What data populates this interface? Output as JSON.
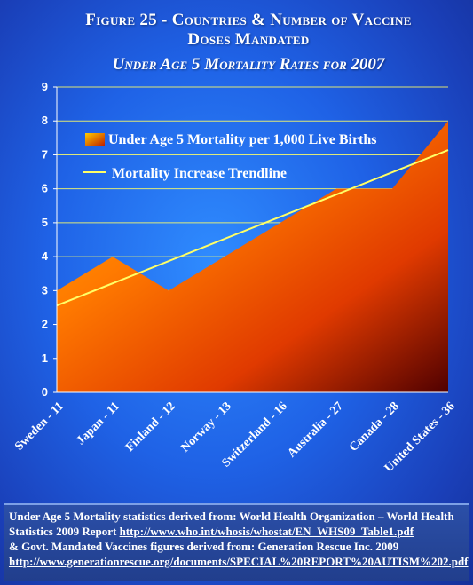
{
  "title": "Figure 25 - Countries & Number of Vaccine Doses Mandated",
  "subtitle": "Under Age 5 Mortality Rates for 2007",
  "chart_data": {
    "type": "area",
    "categories": [
      "Sweden - 11",
      "Japan - 11",
      "Finland - 12",
      "Norway - 13",
      "Switzerland - 16",
      "Australia - 27",
      "Canada - 28",
      "United States - 36"
    ],
    "series": [
      {
        "name": "Under Age 5 Mortality per 1,000 Live Births",
        "values": [
          3,
          4,
          3,
          4,
          5,
          6,
          6,
          8
        ],
        "color": "#ff6a00"
      },
      {
        "name": "Mortality Increase Trendline",
        "values": [
          2.56,
          3.21,
          3.87,
          4.52,
          5.18,
          5.83,
          6.49,
          7.14
        ],
        "color": "#ffff66"
      }
    ],
    "ylim": [
      0,
      9
    ],
    "yticks": [
      "0",
      "1",
      "2",
      "3",
      "4",
      "5",
      "6",
      "7",
      "8",
      "9"
    ],
    "grid": true,
    "legend": "top-left"
  },
  "source": {
    "line1": "Under Age 5 Mortality statistics derived from: World Health Organization – World Health Statistics 2009 Report",
    "link1": "http://www.who.int/whosis/whostat/EN_WHS09_Table1.pdf",
    "line2": "& Govt. Mandated Vaccines figures derived from: Generation Rescue Inc. 2009",
    "link2": "http://www.generationrescue.org/documents/SPECIAL%20REPORT%20AUTISM%202.pdf"
  },
  "colors": {
    "background": "#1f62e6",
    "area_top": "#ff8a00",
    "area_bottom": "#5a0000",
    "trendline": "#ffff66",
    "grid": "#ffff66"
  }
}
